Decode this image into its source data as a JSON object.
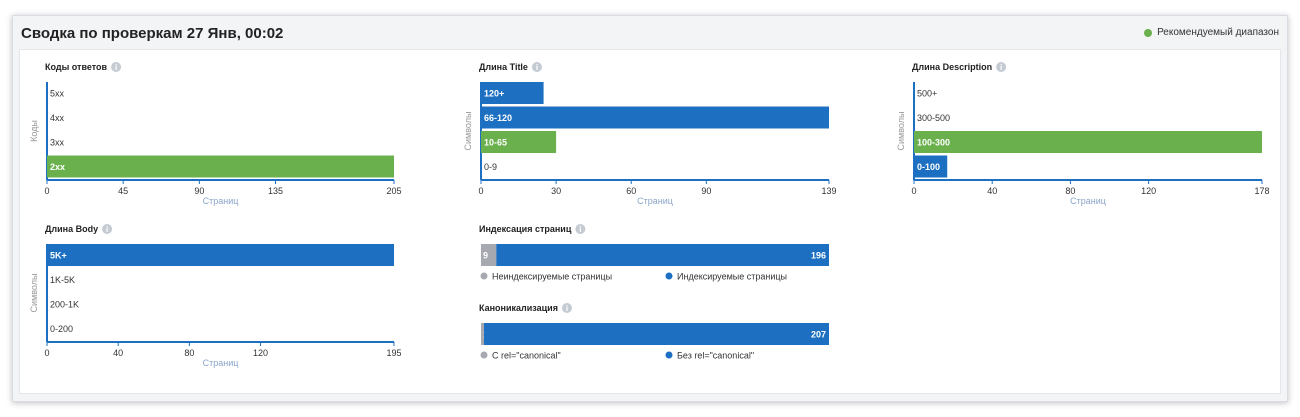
{
  "header": {
    "title": "Сводка по проверкам 27 Янв, 00:02",
    "legend_label": "Рекомендуемый диапазон"
  },
  "colors": {
    "blue": "#1d70c1",
    "green": "#6ab04c",
    "gray": "#a6a9b0"
  },
  "chart_data": [
    {
      "type": "bar",
      "orientation": "horizontal",
      "title": "Коды ответов",
      "ylabel": "Коды",
      "xlabel": "Страниц",
      "categories": [
        "5xx",
        "4xx",
        "3xx",
        "2xx"
      ],
      "values": [
        0,
        0,
        0,
        205
      ],
      "highlight": [
        false,
        false,
        false,
        true
      ],
      "xlim": [
        0,
        205
      ],
      "ticks": [
        0,
        45,
        90,
        135,
        205
      ]
    },
    {
      "type": "bar",
      "orientation": "horizontal",
      "title": "Длина Title",
      "ylabel": "Символы",
      "xlabel": "Страниц",
      "categories": [
        "120+",
        "66-120",
        "10-65",
        "0-9"
      ],
      "values": [
        25,
        139,
        30,
        0
      ],
      "highlight": [
        false,
        false,
        true,
        false
      ],
      "xlim": [
        0,
        139
      ],
      "ticks": [
        0,
        30,
        60,
        90,
        139
      ]
    },
    {
      "type": "bar",
      "orientation": "horizontal",
      "title": "Длина Description",
      "ylabel": "Символы",
      "xlabel": "Страниц",
      "categories": [
        "500+",
        "300-500",
        "100-300",
        "0-100"
      ],
      "values": [
        0,
        0,
        178,
        17
      ],
      "highlight": [
        false,
        false,
        true,
        false
      ],
      "xlim": [
        0,
        178
      ],
      "ticks": [
        0,
        40,
        80,
        120,
        178
      ]
    },
    {
      "type": "bar",
      "orientation": "horizontal",
      "title": "Длина Body",
      "ylabel": "Символы",
      "xlabel": "Страниц",
      "categories": [
        "5K+",
        "1K-5K",
        "200-1K",
        "0-200"
      ],
      "values": [
        195,
        0,
        0,
        0
      ],
      "highlight": [
        false,
        false,
        false,
        false
      ],
      "xlim": [
        0,
        195
      ],
      "ticks": [
        0,
        40,
        80,
        120,
        195
      ]
    },
    {
      "type": "bar",
      "orientation": "stacked",
      "title": "Индексация страниц",
      "series": [
        {
          "name": "Неиндексируемые страницы",
          "value": 9,
          "color": "gray"
        },
        {
          "name": "Индексируемые страницы",
          "value": 196,
          "color": "blue"
        }
      ]
    },
    {
      "type": "bar",
      "orientation": "stacked",
      "title": "Каноникализация",
      "series": [
        {
          "name": "С rel=\"canonical\"",
          "value": 1,
          "color": "gray"
        },
        {
          "name": "Без rel=\"canonical\"",
          "value": 207,
          "color": "blue"
        }
      ]
    }
  ]
}
